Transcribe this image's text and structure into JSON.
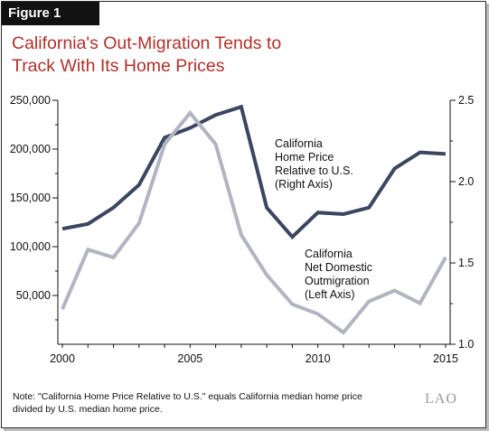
{
  "figure_label": "Figure 1",
  "title_lines": [
    "California's Out-Migration Tends to",
    "Track With Its Home Prices"
  ],
  "note_lines": [
    "Note: \"California Home Price Relative to U.S.\" equals California median home price",
    "divided by U.S. median home price."
  ],
  "logo_text": "LAO",
  "colors": {
    "title": "#b0312a",
    "home_price": "#3b4660",
    "migration": "#b2b5c1"
  },
  "chart_data": {
    "type": "line",
    "title": "California's Out-Migration Tends to Track With Its Home Prices",
    "x": [
      2000,
      2001,
      2002,
      2003,
      2004,
      2005,
      2006,
      2007,
      2008,
      2009,
      2010,
      2011,
      2012,
      2013,
      2014,
      2015
    ],
    "x_ticks": [
      "2000",
      "2005",
      "2010",
      "2015"
    ],
    "xlim": [
      2000,
      2015
    ],
    "left_axis": {
      "ylim": [
        0,
        250000
      ],
      "ticks": [
        "50,000",
        "100,000",
        "150,000",
        "200,000",
        "250,000"
      ]
    },
    "right_axis": {
      "ylim": [
        1.0,
        2.5
      ],
      "ticks": [
        "1.0",
        "1.5",
        "2.0",
        "2.5"
      ]
    },
    "series": [
      {
        "name_lines": [
          "California",
          "Home Price",
          "Relative to U.S.",
          "(Right Axis)"
        ],
        "axis": "right",
        "values": [
          1.71,
          1.74,
          1.84,
          1.98,
          2.27,
          2.33,
          2.41,
          2.46,
          1.84,
          1.66,
          1.81,
          1.8,
          1.84,
          2.08,
          2.18,
          2.17
        ]
      },
      {
        "name_lines": [
          "California",
          "Net Domestic",
          "Outmigration",
          "(Left Axis)"
        ],
        "axis": "left",
        "values": [
          36000,
          97000,
          89000,
          124000,
          205000,
          237000,
          205000,
          112000,
          71000,
          41000,
          31000,
          12000,
          44000,
          55000,
          42000,
          89000
        ]
      }
    ]
  }
}
